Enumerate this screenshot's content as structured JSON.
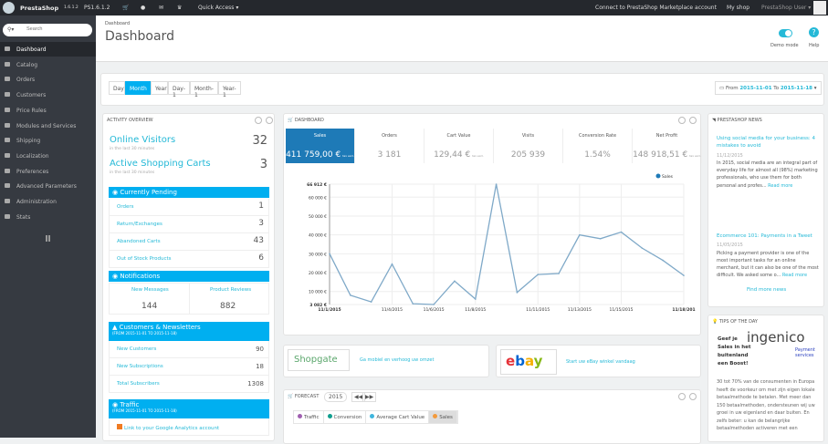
{
  "topbar": {
    "brand": "PrestaShop",
    "brand_version": "1.6.1.2",
    "ps_version": "PS1.6.1.2",
    "quick_access": "Quick Access ▾",
    "connect": "Connect to PrestaShop Marketplace account",
    "my_shop": "My shop",
    "user": "PrestaShop User ▾"
  },
  "sidebar": {
    "search_placeholder": "Search",
    "items": [
      {
        "label": "Dashboard",
        "active": true
      },
      {
        "label": "Catalog"
      },
      {
        "label": "Orders"
      },
      {
        "label": "Customers"
      },
      {
        "label": "Price Rules"
      },
      {
        "label": "Modules and Services"
      },
      {
        "label": "Shipping"
      },
      {
        "label": "Localization"
      },
      {
        "label": "Preferences"
      },
      {
        "label": "Advanced Parameters"
      },
      {
        "label": "Administration"
      },
      {
        "label": "Stats"
      }
    ]
  },
  "header": {
    "breadcrumb": "Dashboard",
    "title": "Dashboard",
    "demo_mode": "Demo mode",
    "help": "Help"
  },
  "toolbar": {
    "periods": [
      "Day",
      "Month",
      "Year",
      "Day-1",
      "Month-1",
      "Year-1"
    ],
    "active_period": "Month",
    "date_from_label": "From",
    "date_from": "2015-11-01",
    "date_to_label": "To",
    "date_to": "2015-11-18"
  },
  "activity": {
    "title": "Activity overview",
    "online_visitors": "Online Visitors",
    "online_visitors_sub": "in the last 30 minutes",
    "online_visitors_value": "32",
    "active_carts": "Active Shopping Carts",
    "active_carts_sub": "in the last 30 minutes",
    "active_carts_value": "3",
    "pending_title": "Currently Pending",
    "pending": [
      {
        "label": "Orders",
        "value": "1"
      },
      {
        "label": "Return/Exchanges",
        "value": "3"
      },
      {
        "label": "Abandoned Carts",
        "value": "43"
      },
      {
        "label": "Out of Stock Products",
        "value": "6"
      }
    ],
    "notifications_title": "Notifications",
    "new_messages": "New Messages",
    "new_messages_value": "144",
    "product_reviews": "Product Reviews",
    "product_reviews_value": "882",
    "customers_title": "Customers & Newsletters",
    "customers_range": "(FROM 2015-11-01 TO 2015-11-18)",
    "customers": [
      {
        "label": "New Customers",
        "value": "90"
      },
      {
        "label": "New Subscriptions",
        "value": "18"
      },
      {
        "label": "Total Subscribers",
        "value": "1308"
      }
    ],
    "traffic_title": "Traffic",
    "traffic_range": "(FROM 2015-11-01 TO 2015-11-18)",
    "ga_link": "Link to your Google Analytics account"
  },
  "dashboard": {
    "title": "Dashboard",
    "kpis": [
      {
        "label": "Sales",
        "value": "411 759,00 €",
        "suffix": "tax excl."
      },
      {
        "label": "Orders",
        "value": "3 181"
      },
      {
        "label": "Cart Value",
        "value": "129,44 €",
        "suffix": "tax excl."
      },
      {
        "label": "Visits",
        "value": "205 939"
      },
      {
        "label": "Conversion Rate",
        "value": "1.54%"
      },
      {
        "label": "Net Profit",
        "value": "148 918,51 €",
        "suffix": "tax excl."
      }
    ]
  },
  "chart_data": {
    "type": "line",
    "series": [
      {
        "name": "Sales",
        "color": "#7fa9c8",
        "values": [
          30000,
          8000,
          4500,
          24500,
          3500,
          3082,
          15500,
          6000,
          66912,
          9500,
          19000,
          19500,
          40000,
          38000,
          41500,
          33000,
          26500,
          18500
        ]
      }
    ],
    "x": [
      "11/1/2015",
      "11/2/2015",
      "11/3/2015",
      "11/4/2015",
      "11/5/2015",
      "11/6/2015",
      "11/7/2015",
      "11/8/2015",
      "11/9/2015",
      "11/10/2015",
      "11/11/2015",
      "11/12/2015",
      "11/13/2015",
      "11/14/2015",
      "11/15/2015",
      "11/16/2015",
      "11/17/2015",
      "11/18/2015"
    ],
    "x_ticks": [
      {
        "i": 0,
        "label": "11/1/2015"
      },
      {
        "i": 3,
        "label": "11/4/2015"
      },
      {
        "i": 5,
        "label": "11/6/2015"
      },
      {
        "i": 7,
        "label": "11/8/2015"
      },
      {
        "i": 10,
        "label": "11/11/2015"
      },
      {
        "i": 12,
        "label": "11/13/2015"
      },
      {
        "i": 14,
        "label": "11/15/2015"
      },
      {
        "i": 17,
        "label": "11/18/201"
      }
    ],
    "y_ticks": [
      {
        "v": 3082,
        "label": "3 082 €"
      },
      {
        "v": 10000,
        "label": "10 000 €"
      },
      {
        "v": 20000,
        "label": "20 000 €"
      },
      {
        "v": 30000,
        "label": "30 000 €"
      },
      {
        "v": 40000,
        "label": "40 000 €"
      },
      {
        "v": 50000,
        "label": "50 000 €"
      },
      {
        "v": 60000,
        "label": "60 000 €"
      },
      {
        "v": 66912,
        "label": "66 912 €"
      }
    ],
    "ylim": [
      3082,
      66912
    ],
    "grid": true,
    "legend": "top-right"
  },
  "ads": {
    "shopgate_logo": "Shopgate",
    "shopgate_text": "Ga mobiel en verhoog uw omzet",
    "ebay_logo": "ebay",
    "ebay_text": "Start uw eBay winkel vandaag"
  },
  "forecast": {
    "title": "Forecast",
    "year": "2015",
    "tabs": [
      {
        "label": "Traffic",
        "color": "#a05fb0"
      },
      {
        "label": "Conversion",
        "color": "#0f9e8e"
      },
      {
        "label": "Average Cart Value",
        "color": "#3fb5dd"
      },
      {
        "label": "Sales",
        "color": "#f39a3c"
      }
    ]
  },
  "news": {
    "title": "PrestaShop News",
    "items": [
      {
        "title": "Using social media for your business: 4 mistakes to avoid",
        "date": "11/12/2015",
        "text": "In 2015, social media are an integral part of everyday life for almost all (98%) marketing professionals, who use them for both personal and profes...",
        "more": "Read more"
      },
      {
        "title": "Ecommerce 101: Payments in a Tweet",
        "date": "11/05/2015",
        "text": "Picking a payment provider is one of the most important tasks for an online merchant, but it can also be one of the most difficult. We asked some o...",
        "more": "Read more"
      }
    ],
    "find_more": "Find more news"
  },
  "tips": {
    "title": "Tips of the day",
    "heading": "Geef je Sales in het buitenland een Boost!",
    "logo": "ingenico",
    "logo_sub": "Payment services",
    "text": "30 tot 70% van de consumenten in Europa heeft de voorkeur om met zijn eigen lokale betaalmethode te betalen. Met meer dan 150 betaalmethoden, ondersteunen wij uw groei in uw eigenland en daar buiten. En zelfs beter: u kan de belangrijke betaalmethoden activeren met een"
  }
}
